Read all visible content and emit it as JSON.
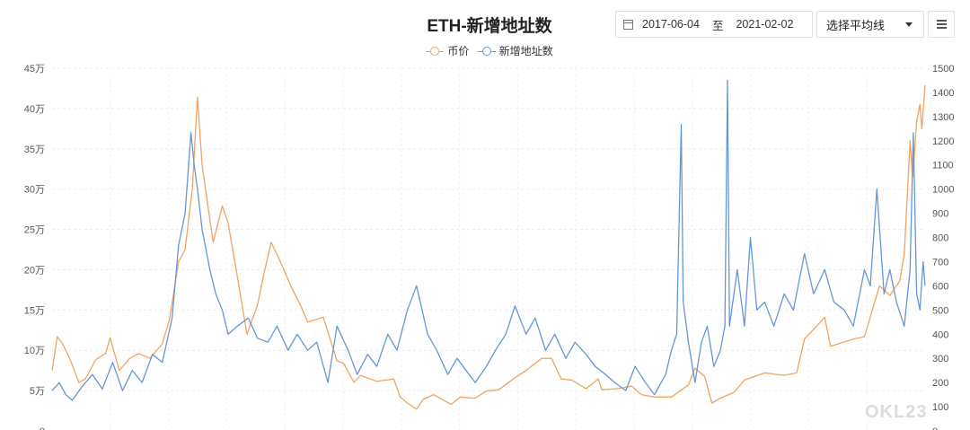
{
  "header": {
    "title": "ETH-新增地址数",
    "date_start": "2017-06-04",
    "date_sep": "至",
    "date_end": "2021-02-02",
    "ma_select": "选择平均线",
    "menu_icon": "hamburger-menu-icon",
    "calendar_icon": "calendar-icon"
  },
  "watermark": "OKL23",
  "chart_data": {
    "type": "line",
    "title": "ETH-新增地址数",
    "x_range": [
      "2017-06-04",
      "2021-02-02"
    ],
    "y_left": {
      "ticks": [
        "0",
        "5万",
        "10万",
        "15万",
        "20万",
        "25万",
        "30万",
        "35万",
        "40万",
        "45万"
      ],
      "range": [
        0,
        450000
      ]
    },
    "y_right": {
      "ticks": [
        "0",
        "100",
        "200",
        "300",
        "400",
        "500",
        "600",
        "700",
        "800",
        "900",
        "1000",
        "1100",
        "1200",
        "1300",
        "1400",
        "1500"
      ],
      "range": [
        0,
        1500
      ]
    },
    "grid": true,
    "legend_position": "top-center",
    "series": [
      {
        "name": "币价",
        "axis": "right",
        "color": "#f0a463",
        "points": [
          [
            "2017-06-04",
            250
          ],
          [
            "2017-06-12",
            390
          ],
          [
            "2017-06-20",
            360
          ],
          [
            "2017-07-01",
            300
          ],
          [
            "2017-07-15",
            200
          ],
          [
            "2017-07-25",
            215
          ],
          [
            "2017-08-10",
            295
          ],
          [
            "2017-08-25",
            320
          ],
          [
            "2017-09-01",
            385
          ],
          [
            "2017-09-15",
            250
          ],
          [
            "2017-10-01",
            300
          ],
          [
            "2017-10-15",
            320
          ],
          [
            "2017-11-01",
            300
          ],
          [
            "2017-11-20",
            360
          ],
          [
            "2017-12-01",
            460
          ],
          [
            "2017-12-15",
            700
          ],
          [
            "2017-12-25",
            750
          ],
          [
            "2018-01-05",
            1000
          ],
          [
            "2018-01-13",
            1380
          ],
          [
            "2018-01-20",
            1100
          ],
          [
            "2018-02-06",
            780
          ],
          [
            "2018-02-20",
            930
          ],
          [
            "2018-03-01",
            860
          ],
          [
            "2018-03-15",
            640
          ],
          [
            "2018-03-30",
            400
          ],
          [
            "2018-04-15",
            520
          ],
          [
            "2018-04-25",
            650
          ],
          [
            "2018-05-06",
            780
          ],
          [
            "2018-05-20",
            700
          ],
          [
            "2018-06-05",
            600
          ],
          [
            "2018-06-20",
            520
          ],
          [
            "2018-07-01",
            450
          ],
          [
            "2018-07-25",
            470
          ],
          [
            "2018-08-15",
            290
          ],
          [
            "2018-08-25",
            280
          ],
          [
            "2018-09-10",
            200
          ],
          [
            "2018-09-20",
            230
          ],
          [
            "2018-10-15",
            205
          ],
          [
            "2018-11-10",
            215
          ],
          [
            "2018-11-20",
            140
          ],
          [
            "2018-12-01",
            115
          ],
          [
            "2018-12-15",
            90
          ],
          [
            "2018-12-25",
            130
          ],
          [
            "2019-01-10",
            150
          ],
          [
            "2019-02-06",
            110
          ],
          [
            "2019-02-20",
            140
          ],
          [
            "2019-03-15",
            135
          ],
          [
            "2019-04-01",
            165
          ],
          [
            "2019-04-20",
            170
          ],
          [
            "2019-05-15",
            220
          ],
          [
            "2019-06-01",
            250
          ],
          [
            "2019-06-25",
            300
          ],
          [
            "2019-07-10",
            300
          ],
          [
            "2019-07-25",
            215
          ],
          [
            "2019-08-10",
            210
          ],
          [
            "2019-09-01",
            175
          ],
          [
            "2019-09-20",
            215
          ],
          [
            "2019-09-25",
            170
          ],
          [
            "2019-10-20",
            175
          ],
          [
            "2019-11-10",
            185
          ],
          [
            "2019-11-25",
            150
          ],
          [
            "2019-12-15",
            140
          ],
          [
            "2020-01-10",
            140
          ],
          [
            "2020-02-05",
            190
          ],
          [
            "2020-02-15",
            260
          ],
          [
            "2020-03-01",
            225
          ],
          [
            "2020-03-12",
            115
          ],
          [
            "2020-03-25",
            135
          ],
          [
            "2020-04-15",
            160
          ],
          [
            "2020-05-01",
            210
          ],
          [
            "2020-06-01",
            240
          ],
          [
            "2020-07-01",
            230
          ],
          [
            "2020-07-20",
            240
          ],
          [
            "2020-08-01",
            380
          ],
          [
            "2020-08-15",
            420
          ],
          [
            "2020-09-01",
            470
          ],
          [
            "2020-09-10",
            350
          ],
          [
            "2020-10-15",
            380
          ],
          [
            "2020-11-01",
            390
          ],
          [
            "2020-11-24",
            600
          ],
          [
            "2020-12-10",
            560
          ],
          [
            "2020-12-25",
            620
          ],
          [
            "2021-01-01",
            730
          ],
          [
            "2021-01-10",
            1200
          ],
          [
            "2021-01-14",
            1050
          ],
          [
            "2021-01-20",
            1280
          ],
          [
            "2021-01-25",
            1350
          ],
          [
            "2021-01-28",
            1250
          ],
          [
            "2021-02-02",
            1430
          ]
        ]
      },
      {
        "name": "新增地址数",
        "axis": "left",
        "color": "#6597d6",
        "points": [
          [
            "2017-06-04",
            50000
          ],
          [
            "2017-06-15",
            60000
          ],
          [
            "2017-06-25",
            45000
          ],
          [
            "2017-07-05",
            38000
          ],
          [
            "2017-07-20",
            55000
          ],
          [
            "2017-08-05",
            70000
          ],
          [
            "2017-08-20",
            52000
          ],
          [
            "2017-09-05",
            85000
          ],
          [
            "2017-09-20",
            50000
          ],
          [
            "2017-10-05",
            75000
          ],
          [
            "2017-10-20",
            60000
          ],
          [
            "2017-11-05",
            95000
          ],
          [
            "2017-11-20",
            85000
          ],
          [
            "2017-12-05",
            140000
          ],
          [
            "2017-12-15",
            230000
          ],
          [
            "2017-12-25",
            270000
          ],
          [
            "2018-01-03",
            370000
          ],
          [
            "2018-01-08",
            330000
          ],
          [
            "2018-01-13",
            300000
          ],
          [
            "2018-01-20",
            250000
          ],
          [
            "2018-02-01",
            200000
          ],
          [
            "2018-02-10",
            170000
          ],
          [
            "2018-02-20",
            150000
          ],
          [
            "2018-03-01",
            120000
          ],
          [
            "2018-03-15",
            130000
          ],
          [
            "2018-04-01",
            140000
          ],
          [
            "2018-04-15",
            115000
          ],
          [
            "2018-05-01",
            110000
          ],
          [
            "2018-05-15",
            130000
          ],
          [
            "2018-06-01",
            100000
          ],
          [
            "2018-06-15",
            120000
          ],
          [
            "2018-07-01",
            100000
          ],
          [
            "2018-07-15",
            110000
          ],
          [
            "2018-08-01",
            60000
          ],
          [
            "2018-08-15",
            130000
          ],
          [
            "2018-09-01",
            100000
          ],
          [
            "2018-09-15",
            70000
          ],
          [
            "2018-10-01",
            95000
          ],
          [
            "2018-10-15",
            80000
          ],
          [
            "2018-11-01",
            120000
          ],
          [
            "2018-11-15",
            100000
          ],
          [
            "2018-12-01",
            150000
          ],
          [
            "2018-12-15",
            180000
          ],
          [
            "2019-01-01",
            120000
          ],
          [
            "2019-01-15",
            100000
          ],
          [
            "2019-02-01",
            70000
          ],
          [
            "2019-02-15",
            90000
          ],
          [
            "2019-03-01",
            75000
          ],
          [
            "2019-03-15",
            60000
          ],
          [
            "2019-04-01",
            80000
          ],
          [
            "2019-04-15",
            100000
          ],
          [
            "2019-05-01",
            120000
          ],
          [
            "2019-05-15",
            155000
          ],
          [
            "2019-06-01",
            120000
          ],
          [
            "2019-06-15",
            140000
          ],
          [
            "2019-07-01",
            100000
          ],
          [
            "2019-07-15",
            120000
          ],
          [
            "2019-08-01",
            90000
          ],
          [
            "2019-08-15",
            110000
          ],
          [
            "2019-09-01",
            95000
          ],
          [
            "2019-09-15",
            80000
          ],
          [
            "2019-10-01",
            70000
          ],
          [
            "2019-10-15",
            60000
          ],
          [
            "2019-11-01",
            50000
          ],
          [
            "2019-11-15",
            80000
          ],
          [
            "2019-12-01",
            60000
          ],
          [
            "2019-12-15",
            45000
          ],
          [
            "2020-01-01",
            70000
          ],
          [
            "2020-01-10",
            100000
          ],
          [
            "2020-01-18",
            120000
          ],
          [
            "2020-01-25",
            380000
          ],
          [
            "2020-01-28",
            160000
          ],
          [
            "2020-02-05",
            110000
          ],
          [
            "2020-02-15",
            60000
          ],
          [
            "2020-02-25",
            110000
          ],
          [
            "2020-03-05",
            130000
          ],
          [
            "2020-03-15",
            80000
          ],
          [
            "2020-03-25",
            100000
          ],
          [
            "2020-04-01",
            130000
          ],
          [
            "2020-04-05",
            435000
          ],
          [
            "2020-04-08",
            130000
          ],
          [
            "2020-04-20",
            200000
          ],
          [
            "2020-05-01",
            130000
          ],
          [
            "2020-05-10",
            240000
          ],
          [
            "2020-05-20",
            150000
          ],
          [
            "2020-06-01",
            160000
          ],
          [
            "2020-06-15",
            130000
          ],
          [
            "2020-07-01",
            170000
          ],
          [
            "2020-07-15",
            150000
          ],
          [
            "2020-08-01",
            220000
          ],
          [
            "2020-08-15",
            170000
          ],
          [
            "2020-09-01",
            200000
          ],
          [
            "2020-09-15",
            160000
          ],
          [
            "2020-10-01",
            150000
          ],
          [
            "2020-10-15",
            130000
          ],
          [
            "2020-11-01",
            200000
          ],
          [
            "2020-11-10",
            180000
          ],
          [
            "2020-11-20",
            300000
          ],
          [
            "2020-12-01",
            170000
          ],
          [
            "2020-12-10",
            200000
          ],
          [
            "2020-12-20",
            160000
          ],
          [
            "2021-01-01",
            130000
          ],
          [
            "2021-01-10",
            200000
          ],
          [
            "2021-01-15",
            370000
          ],
          [
            "2021-01-20",
            170000
          ],
          [
            "2021-01-25",
            150000
          ],
          [
            "2021-01-30",
            210000
          ],
          [
            "2021-02-02",
            180000
          ]
        ]
      }
    ]
  }
}
